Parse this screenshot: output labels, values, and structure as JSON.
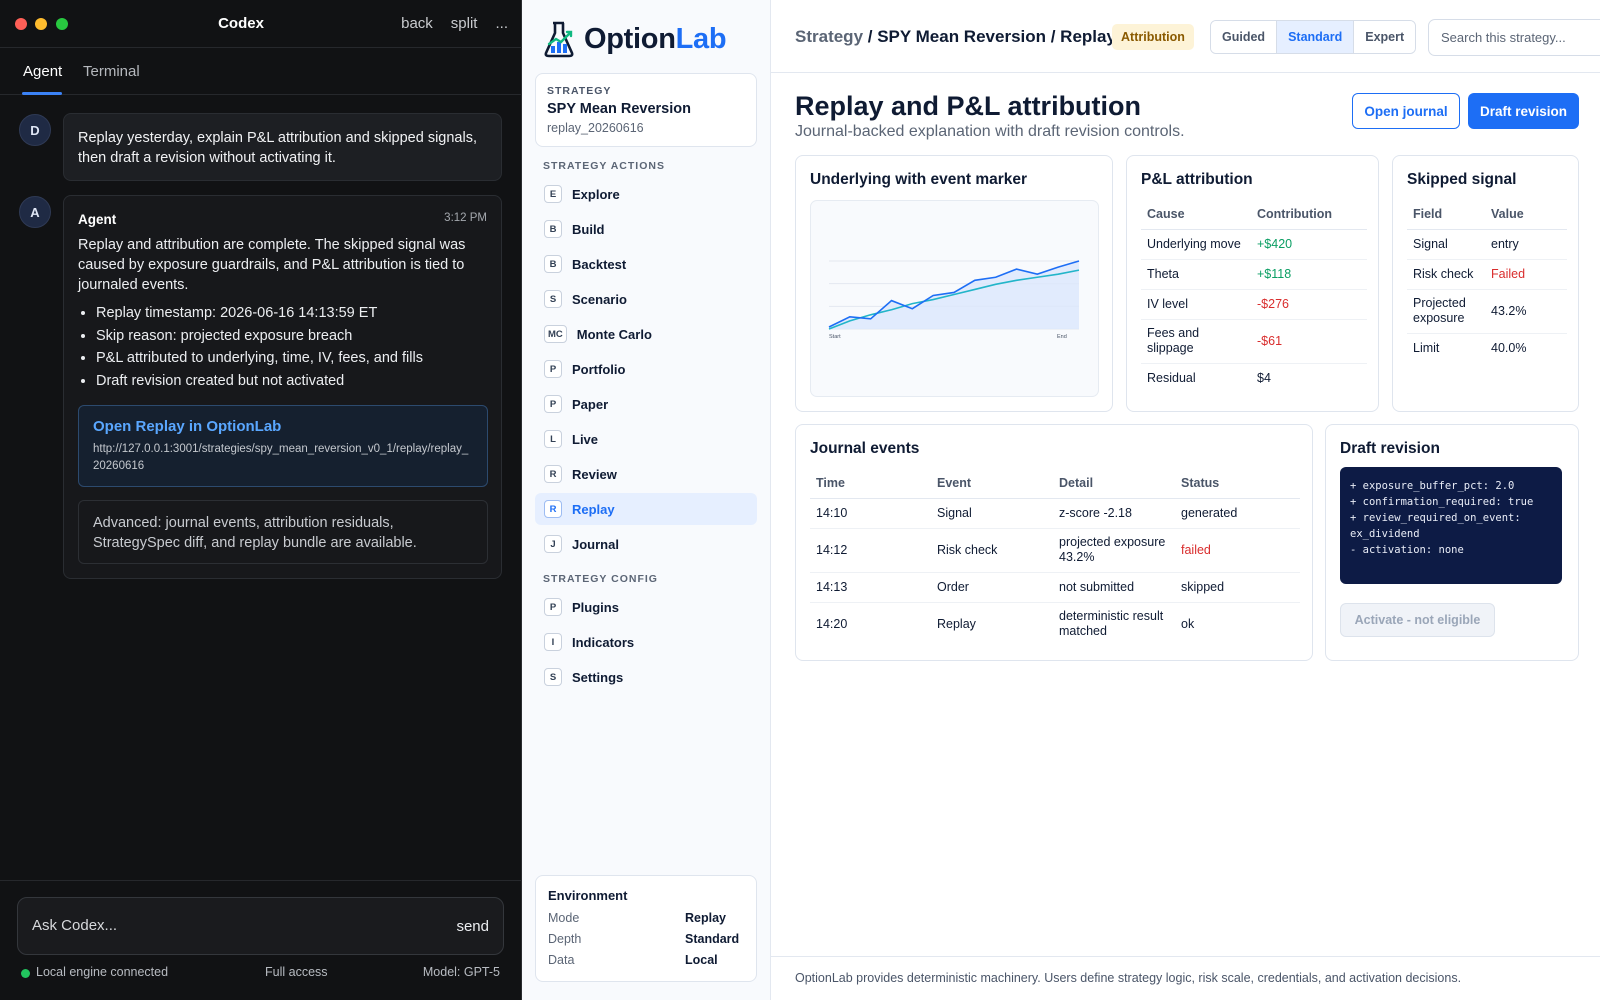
{
  "codex": {
    "title": "Codex",
    "actions": [
      "back",
      "split",
      "..."
    ],
    "tabs": [
      "Agent",
      "Terminal"
    ],
    "user": {
      "avatar": "D",
      "message": "Replay yesterday, explain P&L attribution and skipped signals, then draft a revision without activating it."
    },
    "agent": {
      "avatar": "A",
      "name": "Agent",
      "time": "3:12 PM",
      "text": "Replay and attribution are complete. The skipped signal was caused by exposure guardrails, and P&L attribution is tied to journaled events.",
      "bullets": [
        "Replay timestamp: 2026-06-16 14:13:59 ET",
        "Skip reason: projected exposure breach",
        "P&L attributed to underlying, time, IV, fees, and fills",
        "Draft revision created but not activated"
      ],
      "link_title": "Open Replay in OptionLab",
      "link_url": "http://127.0.0.1:3001/strategies/spy_mean_reversion_v0_1/replay/replay_20260616",
      "advanced": "Advanced: journal events, attribution residuals, StrategySpec diff, and replay bundle are available."
    },
    "composer": {
      "placeholder": "Ask Codex...",
      "send": "send"
    },
    "status": {
      "connection": "Local engine connected",
      "access": "Full access",
      "model": "Model: GPT-5"
    }
  },
  "sidebar": {
    "logo_main": "Option",
    "logo_accent": "Lab",
    "strategy_label": "STRATEGY",
    "strategy_name": "SPY Mean Reversion",
    "strategy_id": "replay_20260616",
    "actions_label": "STRATEGY ACTIONS",
    "actions": [
      {
        "key": "E",
        "label": "Explore"
      },
      {
        "key": "B",
        "label": "Build"
      },
      {
        "key": "B",
        "label": "Backtest"
      },
      {
        "key": "S",
        "label": "Scenario"
      },
      {
        "key": "MC",
        "label": "Monte Carlo"
      },
      {
        "key": "P",
        "label": "Portfolio"
      },
      {
        "key": "P",
        "label": "Paper"
      },
      {
        "key": "L",
        "label": "Live"
      },
      {
        "key": "R",
        "label": "Review"
      },
      {
        "key": "R",
        "label": "Replay",
        "active": true
      },
      {
        "key": "J",
        "label": "Journal"
      }
    ],
    "config_label": "STRATEGY CONFIG",
    "config": [
      {
        "key": "P",
        "label": "Plugins"
      },
      {
        "key": "I",
        "label": "Indicators"
      },
      {
        "key": "S",
        "label": "Settings"
      }
    ],
    "environment": {
      "title": "Environment",
      "rows": [
        {
          "k": "Mode",
          "v": "Replay"
        },
        {
          "k": "Depth",
          "v": "Standard"
        },
        {
          "k": "Data",
          "v": "Local"
        }
      ]
    }
  },
  "main": {
    "breadcrumb_root": "Strategy",
    "breadcrumb_rest": " / SPY Mean Reversion / Replay",
    "badge": "Attribution",
    "modes": [
      "Guided",
      "Standard",
      "Expert"
    ],
    "active_mode": "Standard",
    "search_placeholder": "Search this strategy...",
    "title": "Replay and P&L attribution",
    "subtitle": "Journal-backed explanation with draft revision controls.",
    "open_journal": "Open journal",
    "draft_revision": "Draft revision",
    "chart_card_title": "Underlying with event marker",
    "attribution": {
      "title": "P&L attribution",
      "headers": [
        "Cause",
        "Contribution"
      ],
      "rows": [
        {
          "cause": "Underlying move",
          "value": "+$420",
          "tone": "pos"
        },
        {
          "cause": "Theta",
          "value": "+$118",
          "tone": "pos"
        },
        {
          "cause": "IV level",
          "value": "-$276",
          "tone": "neg"
        },
        {
          "cause": "Fees and slippage",
          "value": "-$61",
          "tone": "neg"
        },
        {
          "cause": "Residual",
          "value": "$4",
          "tone": ""
        }
      ]
    },
    "skipped": {
      "title": "Skipped signal",
      "headers": [
        "Field",
        "Value"
      ],
      "rows": [
        {
          "field": "Signal",
          "value": "entry",
          "tone": ""
        },
        {
          "field": "Risk check",
          "value": "Failed",
          "tone": "neg"
        },
        {
          "field": "Projected exposure",
          "value": "43.2%",
          "tone": ""
        },
        {
          "field": "Limit",
          "value": "40.0%",
          "tone": ""
        }
      ]
    },
    "journal": {
      "title": "Journal events",
      "headers": [
        "Time",
        "Event",
        "Detail",
        "Status"
      ],
      "rows": [
        {
          "time": "14:10",
          "event": "Signal",
          "detail": "z-score -2.18",
          "status": "generated",
          "tone": ""
        },
        {
          "time": "14:12",
          "event": "Risk check",
          "detail": "projected exposure 43.2%",
          "status": "failed",
          "tone": "neg"
        },
        {
          "time": "14:13",
          "event": "Order",
          "detail": "not submitted",
          "status": "skipped",
          "tone": ""
        },
        {
          "time": "14:20",
          "event": "Replay",
          "detail": "deterministic result matched",
          "status": "ok",
          "tone": ""
        }
      ]
    },
    "draft": {
      "title": "Draft revision",
      "diff": "+ exposure_buffer_pct: 2.0\n+ confirmation_required: true\n+ review_required_on_event: ex_dividend\n- activation: none",
      "activate": "Activate - not eligible"
    },
    "footer": "OptionLab provides deterministic machinery. Users define strategy logic, risk scale, credentials, and activation decisions.",
    "colors": {
      "accent": "#1d6ef5",
      "positive": "#0a9e63",
      "negative": "#d92d2d",
      "badge_bg": "#fdf3d7"
    }
  },
  "chart_data": {
    "type": "line",
    "x_tick_labels": [
      "Start",
      "End"
    ],
    "series": [
      {
        "values": [
          100,
          101,
          100.8,
          102.6,
          101.8,
          103.1,
          103.4,
          104.6,
          104.9,
          105.7,
          105.2,
          105.9,
          106.5
        ],
        "color": "#1d6ef5"
      },
      {
        "values": [
          99.8,
          100.6,
          101.2,
          101.7,
          102.3,
          102.7,
          103.2,
          103.7,
          104.2,
          104.6,
          104.9,
          105.2,
          105.6
        ],
        "color": "#22b5c9"
      }
    ],
    "grid": true,
    "shaded_area_under_series": true
  }
}
